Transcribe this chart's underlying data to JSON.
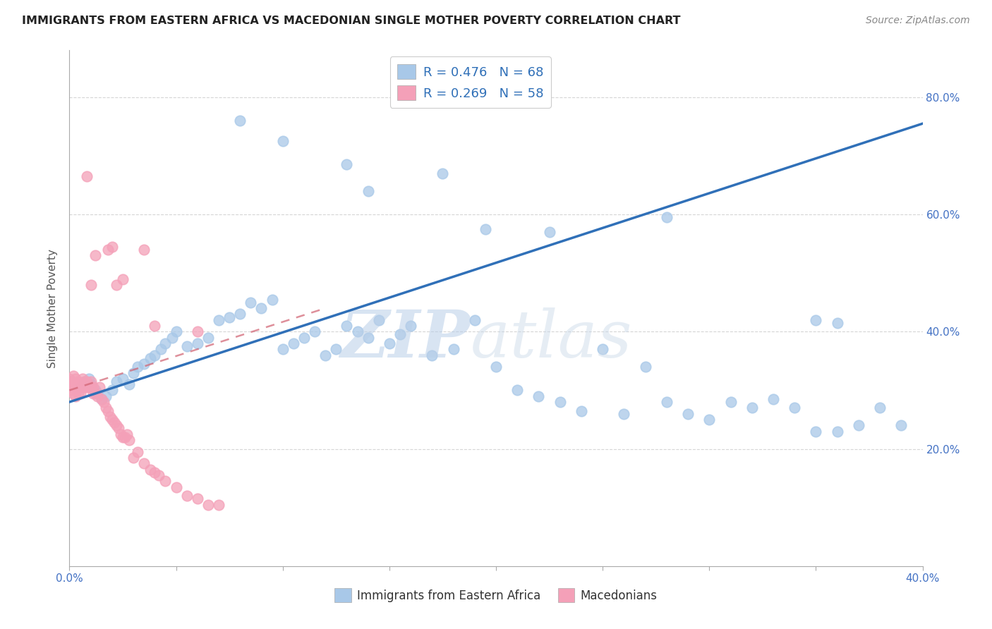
{
  "title": "IMMIGRANTS FROM EASTERN AFRICA VS MACEDONIAN SINGLE MOTHER POVERTY CORRELATION CHART",
  "source": "Source: ZipAtlas.com",
  "ylabel": "Single Mother Poverty",
  "legend_entry1": "R = 0.476   N = 68",
  "legend_entry2": "R = 0.269   N = 58",
  "legend_label1": "Immigrants from Eastern Africa",
  "legend_label2": "Macedonians",
  "color_blue": "#a8c8e8",
  "color_pink": "#f4a0b8",
  "color_line_blue": "#3070b8",
  "color_line_pink": "#e08898",
  "watermark_zip": "ZIP",
  "watermark_atlas": "atlas",
  "xlim": [
    0.0,
    0.4
  ],
  "ylim": [
    0.0,
    0.88
  ],
  "blue_line_x0": 0.0,
  "blue_line_y0": 0.28,
  "blue_line_x1": 0.4,
  "blue_line_y1": 0.755,
  "pink_line_x0": 0.0,
  "pink_line_y0": 0.3,
  "pink_line_x1": 0.12,
  "pink_line_y1": 0.44,
  "blue_x": [
    0.005,
    0.007,
    0.009,
    0.01,
    0.012,
    0.013,
    0.015,
    0.017,
    0.02,
    0.022,
    0.025,
    0.028,
    0.03,
    0.032,
    0.035,
    0.038,
    0.04,
    0.043,
    0.045,
    0.048,
    0.05,
    0.055,
    0.06,
    0.065,
    0.07,
    0.075,
    0.08,
    0.085,
    0.09,
    0.095,
    0.1,
    0.105,
    0.11,
    0.115,
    0.12,
    0.125,
    0.13,
    0.135,
    0.14,
    0.145,
    0.15,
    0.155,
    0.16,
    0.17,
    0.18,
    0.19,
    0.2,
    0.21,
    0.22,
    0.23,
    0.24,
    0.25,
    0.26,
    0.27,
    0.28,
    0.29,
    0.3,
    0.31,
    0.32,
    0.33,
    0.34,
    0.35,
    0.36,
    0.37,
    0.38,
    0.39,
    0.14,
    0.35
  ],
  "blue_y": [
    0.305,
    0.315,
    0.32,
    0.31,
    0.3,
    0.295,
    0.285,
    0.29,
    0.3,
    0.315,
    0.32,
    0.31,
    0.33,
    0.34,
    0.345,
    0.355,
    0.36,
    0.37,
    0.38,
    0.39,
    0.4,
    0.375,
    0.38,
    0.39,
    0.42,
    0.425,
    0.43,
    0.45,
    0.44,
    0.455,
    0.37,
    0.38,
    0.39,
    0.4,
    0.36,
    0.37,
    0.41,
    0.4,
    0.39,
    0.42,
    0.38,
    0.395,
    0.41,
    0.36,
    0.37,
    0.42,
    0.34,
    0.3,
    0.29,
    0.28,
    0.265,
    0.37,
    0.26,
    0.34,
    0.28,
    0.26,
    0.25,
    0.28,
    0.27,
    0.285,
    0.27,
    0.23,
    0.23,
    0.24,
    0.27,
    0.24,
    0.64,
    0.42
  ],
  "blue_outliers_x": [
    0.08,
    0.1,
    0.13,
    0.175,
    0.195,
    0.225,
    0.28,
    0.36
  ],
  "blue_outliers_y": [
    0.76,
    0.725,
    0.685,
    0.67,
    0.575,
    0.57,
    0.595,
    0.415
  ],
  "pink_x": [
    0.0,
    0.0,
    0.0,
    0.001,
    0.001,
    0.001,
    0.002,
    0.002,
    0.002,
    0.003,
    0.003,
    0.003,
    0.004,
    0.004,
    0.004,
    0.005,
    0.005,
    0.005,
    0.006,
    0.006,
    0.007,
    0.007,
    0.008,
    0.008,
    0.009,
    0.01,
    0.01,
    0.011,
    0.011,
    0.012,
    0.013,
    0.014,
    0.015,
    0.016,
    0.017,
    0.018,
    0.019,
    0.02,
    0.021,
    0.022,
    0.023,
    0.024,
    0.025,
    0.026,
    0.027,
    0.028,
    0.03,
    0.032,
    0.035,
    0.038,
    0.04,
    0.042,
    0.045,
    0.05,
    0.055,
    0.06,
    0.065,
    0.07
  ],
  "pink_y": [
    0.305,
    0.315,
    0.32,
    0.3,
    0.31,
    0.315,
    0.295,
    0.305,
    0.325,
    0.29,
    0.305,
    0.32,
    0.295,
    0.305,
    0.315,
    0.295,
    0.305,
    0.31,
    0.31,
    0.32,
    0.305,
    0.315,
    0.305,
    0.315,
    0.305,
    0.305,
    0.315,
    0.295,
    0.305,
    0.295,
    0.29,
    0.305,
    0.285,
    0.28,
    0.27,
    0.265,
    0.255,
    0.25,
    0.245,
    0.24,
    0.235,
    0.225,
    0.22,
    0.22,
    0.225,
    0.215,
    0.185,
    0.195,
    0.175,
    0.165,
    0.16,
    0.155,
    0.145,
    0.135,
    0.12,
    0.115,
    0.105,
    0.105
  ],
  "pink_outliers_x": [
    0.008,
    0.018,
    0.02,
    0.022,
    0.025,
    0.01,
    0.012,
    0.035,
    0.04,
    0.06
  ],
  "pink_outliers_y": [
    0.665,
    0.54,
    0.545,
    0.48,
    0.49,
    0.48,
    0.53,
    0.54,
    0.41,
    0.4
  ]
}
